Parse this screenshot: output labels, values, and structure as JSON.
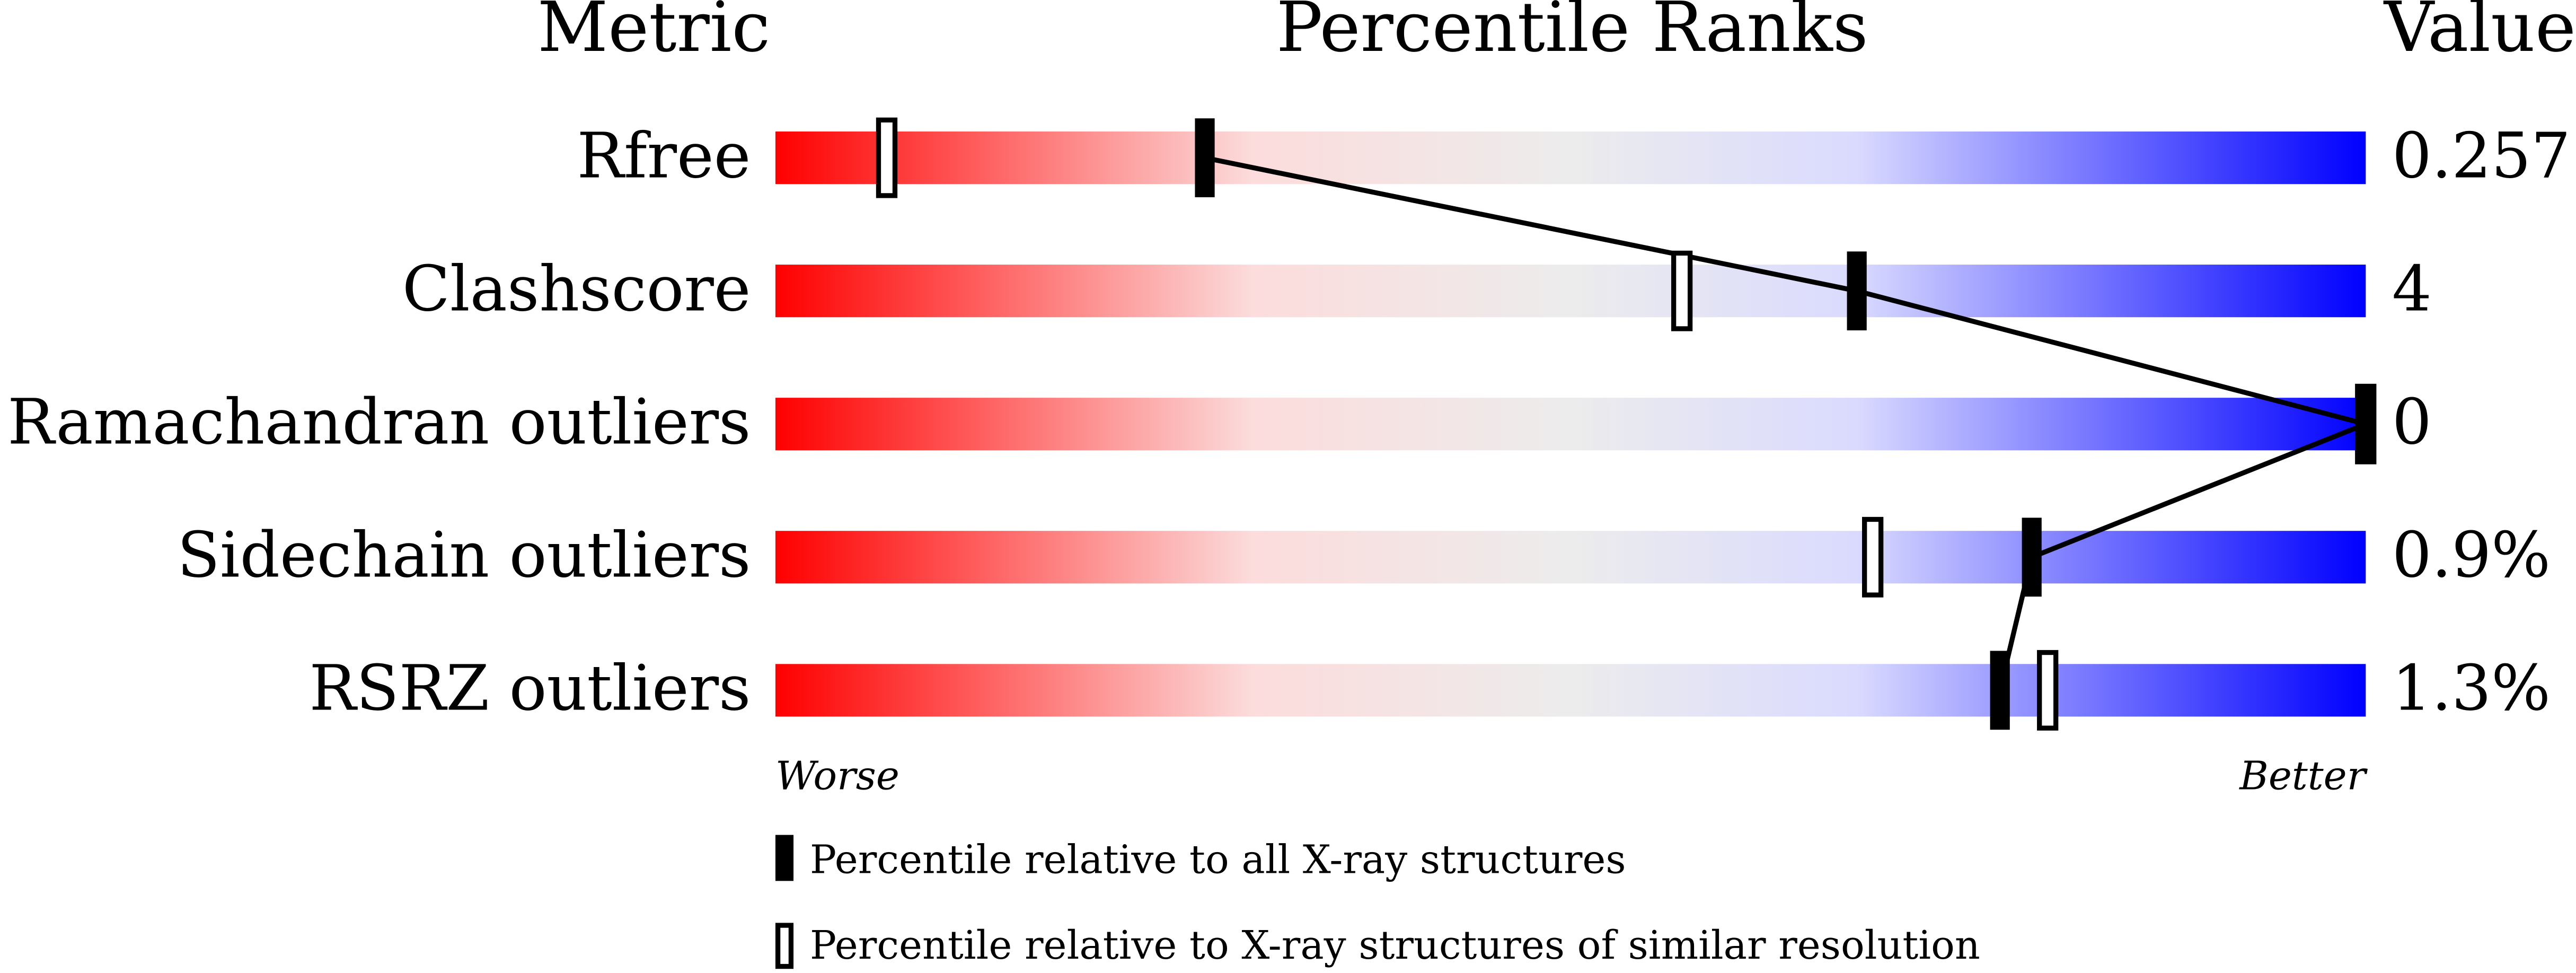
{
  "chart_data": {
    "type": "percentile",
    "headers": [
      "Metric",
      "Percentile Ranks",
      "Value"
    ],
    "categories": [
      "Rfree",
      "Clashscore",
      "Ramachandran outliers",
      "Sidechain outliers",
      "RSRZ outliers"
    ],
    "metric_values": [
      "0.257",
      "4",
      "0",
      "0.9%",
      "1.3%"
    ],
    "series": [
      {
        "name": "Percentile relative to all X-ray structures",
        "color": "#000000",
        "values": [
          27,
          68,
          100,
          79,
          77
        ]
      },
      {
        "name": "Percentile relative to X-ray structures of similar resolution",
        "color": "#000000",
        "values": [
          7,
          57,
          100,
          69,
          80
        ]
      }
    ],
    "xlim": [
      0,
      100
    ],
    "axis_left_label": "Worse",
    "axis_right_label": "Better"
  }
}
